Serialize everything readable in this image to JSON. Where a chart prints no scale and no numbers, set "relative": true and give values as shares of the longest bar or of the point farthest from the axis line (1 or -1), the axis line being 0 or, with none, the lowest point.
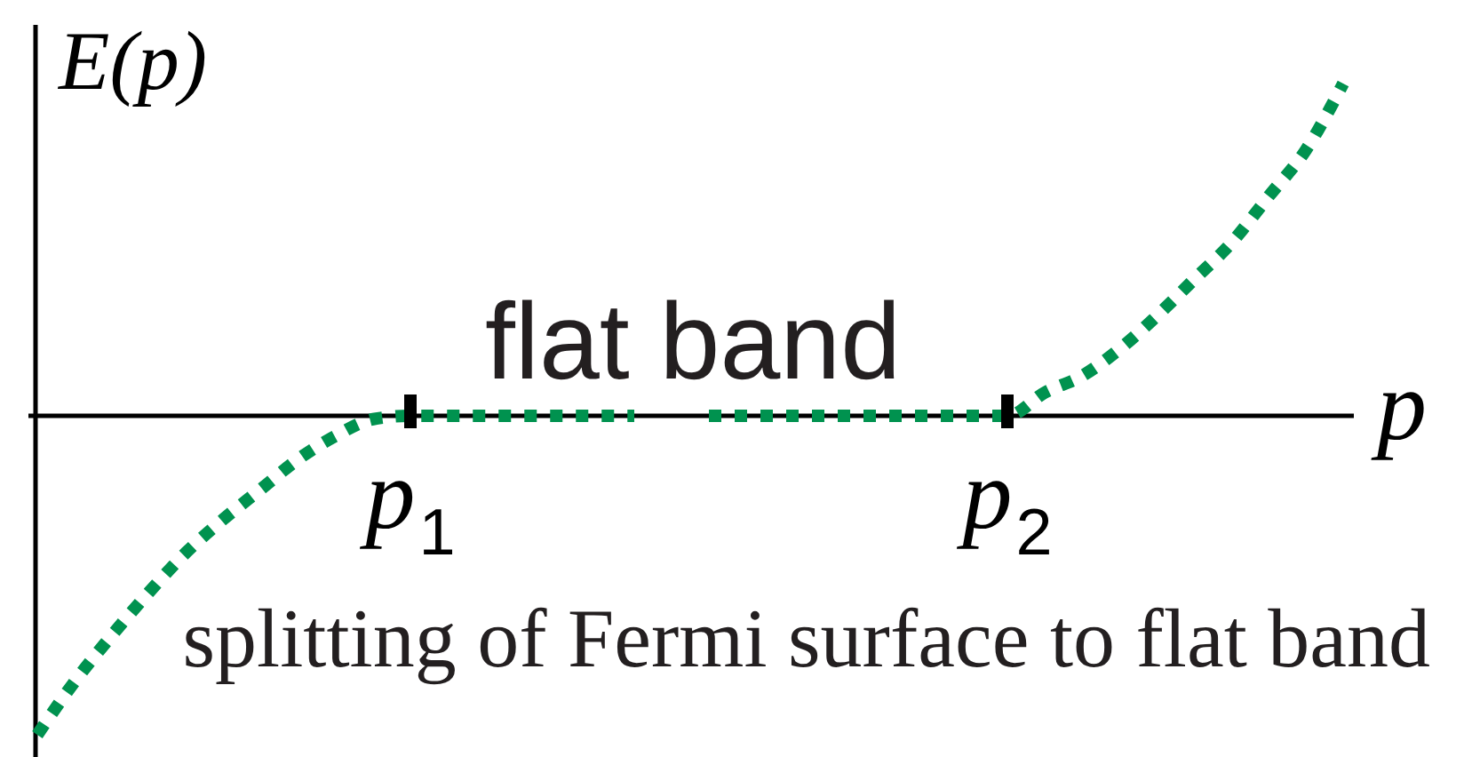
{
  "chart_data": {
    "type": "line",
    "relative": true,
    "ylabel": "E(p)",
    "xlabel": "p",
    "line_style": "dotted",
    "categories": [
      null,
      null,
      null,
      null,
      null,
      null,
      null,
      null,
      null,
      null,
      "p$_{1}$",
      null,
      null,
      null,
      null,
      null,
      null,
      null,
      null,
      null,
      null,
      null,
      null,
      null,
      null,
      null,
      "p$_{2}$",
      null,
      null,
      null,
      null,
      null,
      null,
      null,
      null,
      null
    ],
    "annotations": [
      "flat band",
      "splitting of Fermi surface to flat band"
    ],
    "series": [
      {
        "color": "#00924f",
        "values": [
          -0.96,
          -0.8,
          -0.66,
          -0.53,
          -0.41,
          -0.31,
          -0.22,
          -0.13,
          -0.06,
          -0.01,
          0,
          0,
          0,
          0,
          0,
          0,
          0,
          null,
          0,
          0,
          0,
          0,
          0,
          0,
          0,
          0,
          0,
          0.07,
          0.12,
          0.2,
          0.3,
          0.41,
          0.52,
          0.66,
          0.8,
          1.0
        ]
      }
    ]
  }
}
